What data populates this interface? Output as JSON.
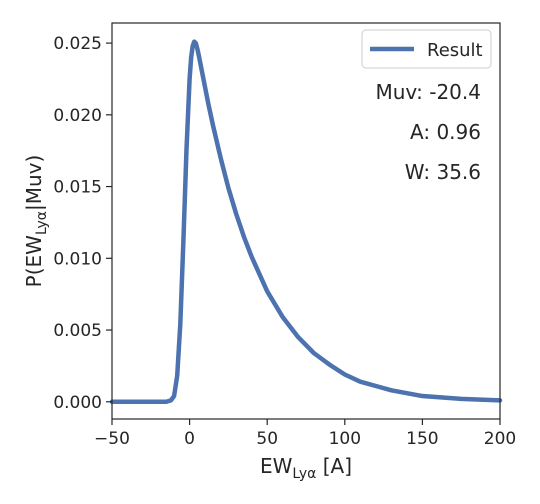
{
  "chart_data": {
    "type": "line",
    "xlabel_main": "EW",
    "xlabel_sub": "Lyα",
    "xlabel_unit": " [A]",
    "ylabel_prefix": "P(EW",
    "ylabel_sub": "Lyα",
    "ylabel_suffix": "|Muv)",
    "xlim": [
      -50,
      200
    ],
    "ylim": [
      -0.0012,
      0.0264
    ],
    "xticks": [
      -50,
      0,
      50,
      100,
      150,
      200
    ],
    "xtick_labels": [
      "−50",
      "0",
      "50",
      "100",
      "150",
      "200"
    ],
    "yticks": [
      0.0,
      0.005,
      0.01,
      0.015,
      0.02,
      0.025
    ],
    "ytick_labels": [
      "0.000",
      "0.005",
      "0.010",
      "0.015",
      "0.020",
      "0.025"
    ],
    "grid": false,
    "legend_position": "top-right",
    "series": [
      {
        "name": "Result",
        "color": "#4c72b0",
        "x": [
          -50,
          -15,
          -12,
          -10,
          -8,
          -6,
          -4,
          -2,
          0,
          1,
          2,
          3,
          4,
          5,
          6,
          8,
          10,
          12,
          15,
          20,
          25,
          30,
          35,
          40,
          50,
          60,
          70,
          80,
          90,
          100,
          110,
          120,
          130,
          140,
          150,
          175,
          200
        ],
        "y": [
          0.0,
          0.0,
          0.0001,
          0.0004,
          0.0018,
          0.0054,
          0.0112,
          0.0176,
          0.0225,
          0.024,
          0.0248,
          0.0251,
          0.025,
          0.0246,
          0.0241,
          0.023,
          0.0219,
          0.0208,
          0.0193,
          0.017,
          0.0149,
          0.0131,
          0.0115,
          0.0101,
          0.0077,
          0.0059,
          0.0045,
          0.0034,
          0.0026,
          0.0019,
          0.0014,
          0.0011,
          0.0008,
          0.0006,
          0.0004,
          0.0002,
          0.0001
        ]
      }
    ],
    "annotations": [
      "Muv: -20.4",
      "A: 0.96",
      "W: 35.6"
    ]
  }
}
